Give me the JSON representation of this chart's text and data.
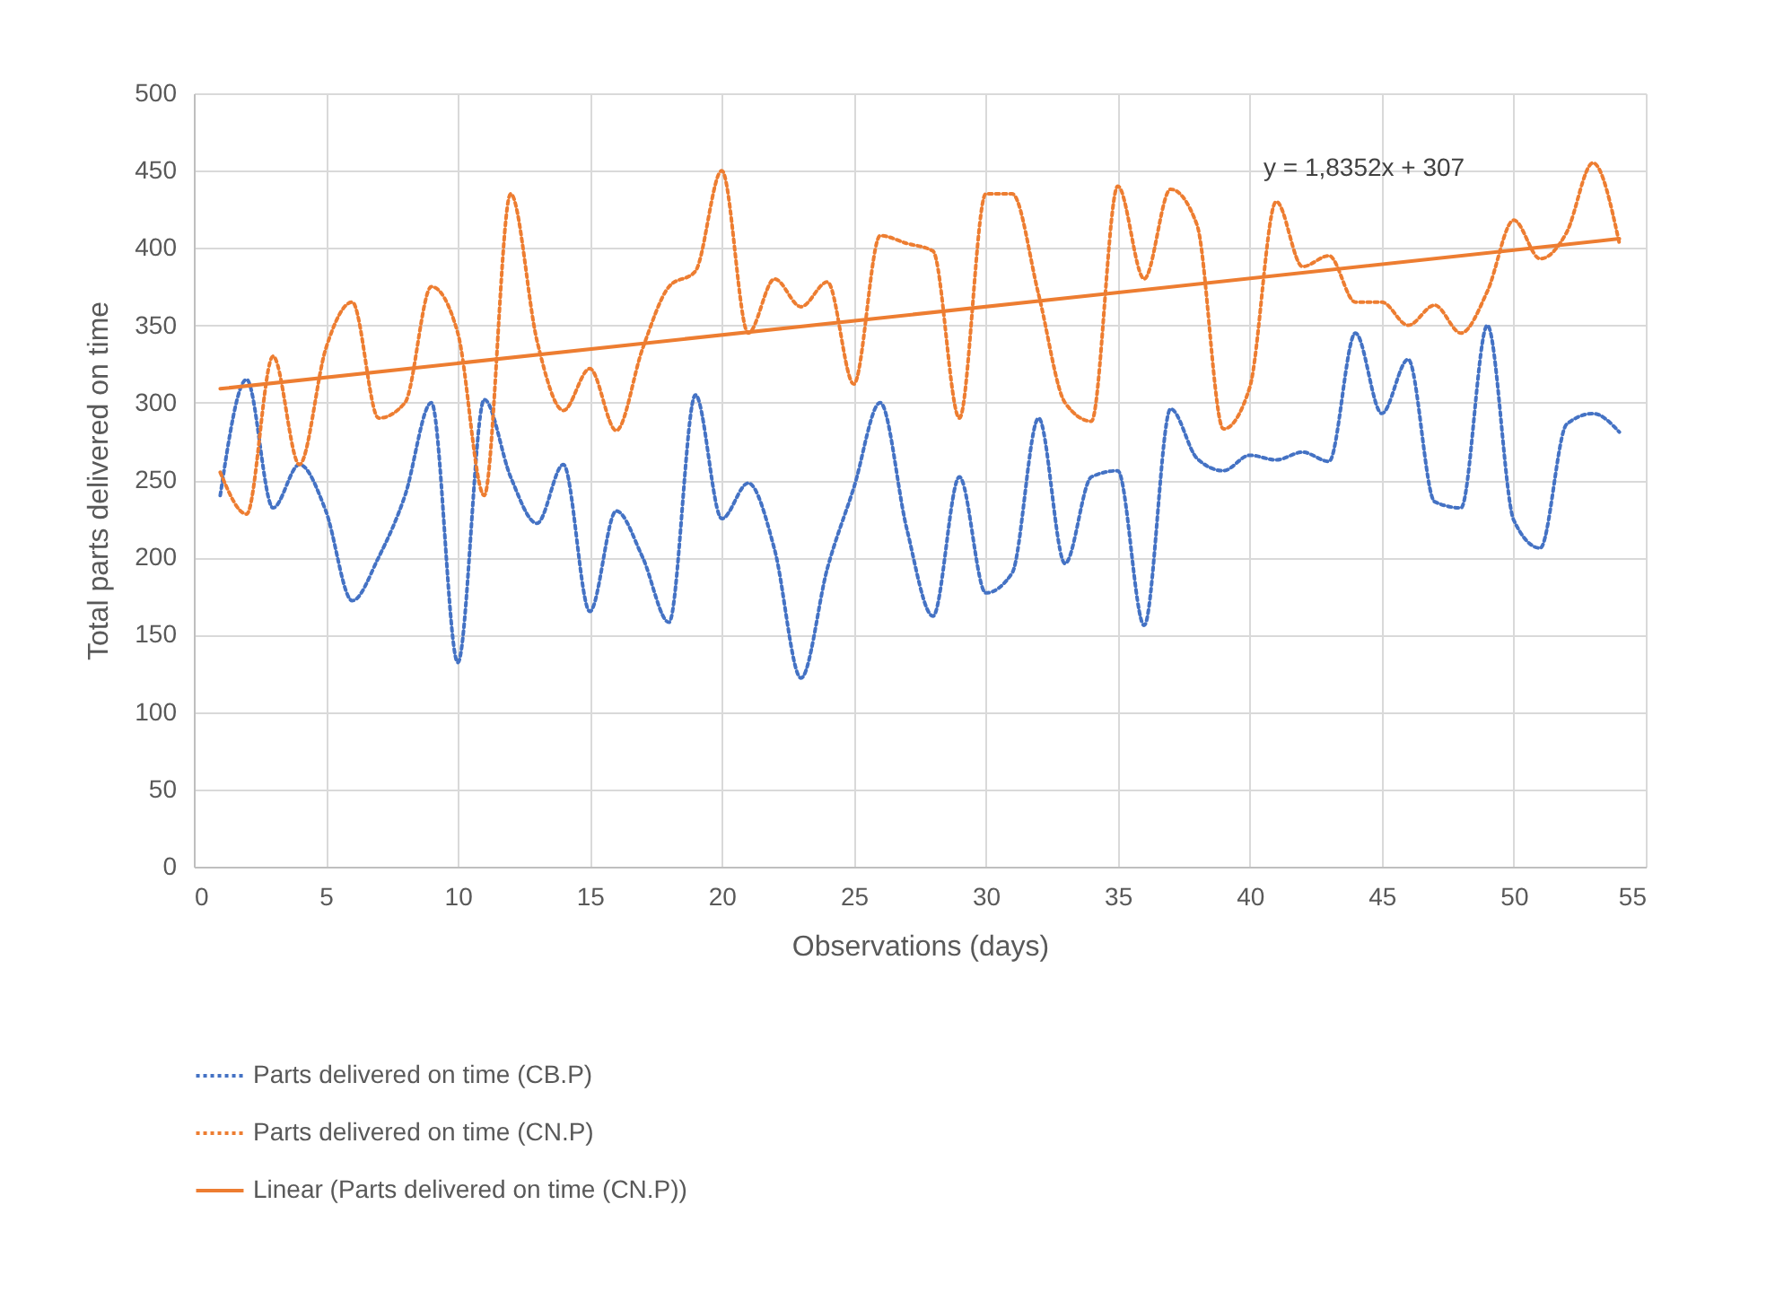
{
  "chart_data": {
    "type": "line",
    "xlabel": "Observations (days)",
    "ylabel": "Total parts delivered on time",
    "x": [
      1,
      2,
      3,
      4,
      5,
      6,
      7,
      8,
      9,
      10,
      11,
      12,
      13,
      14,
      15,
      16,
      17,
      18,
      19,
      20,
      21,
      22,
      23,
      24,
      25,
      26,
      27,
      28,
      29,
      30,
      31,
      32,
      33,
      34,
      35,
      36,
      37,
      38,
      39,
      40,
      41,
      42,
      43,
      44,
      45,
      46,
      47,
      48,
      49,
      50,
      51,
      52,
      53,
      54
    ],
    "series": [
      {
        "name": "Parts delivered on time (CB.P)",
        "color": "#4472c4",
        "line_style": "dotted",
        "values": [
          240,
          315,
          232,
          260,
          230,
          172,
          200,
          240,
          300,
          132,
          302,
          252,
          222,
          260,
          165,
          230,
          200,
          158,
          305,
          225,
          248,
          205,
          122,
          193,
          245,
          300,
          219,
          162,
          252,
          177,
          190,
          290,
          196,
          252,
          256,
          156,
          296,
          264,
          256,
          266,
          263,
          268,
          262,
          345,
          293,
          328,
          236,
          232,
          350,
          224,
          206,
          286,
          293,
          281
        ]
      },
      {
        "name": "Parts delivered on time (CN.P)",
        "color": "#ed7d31",
        "line_style": "dotted",
        "values": [
          255,
          228,
          330,
          260,
          335,
          365,
          290,
          300,
          375,
          345,
          240,
          435,
          340,
          295,
          322,
          282,
          335,
          375,
          385,
          450,
          345,
          380,
          362,
          378,
          312,
          408,
          403,
          398,
          290,
          435,
          435,
          370,
          300,
          288,
          440,
          380,
          438,
          415,
          283,
          310,
          430,
          388,
          395,
          365,
          365,
          350,
          363,
          345,
          372,
          418,
          393,
          410,
          455,
          403
        ]
      },
      {
        "name": "Linear (Parts delivered on time (CN.P))",
        "color": "#ed7d31",
        "line_style": "solid",
        "x": [
          1,
          54
        ],
        "values": [
          309,
          406
        ]
      }
    ],
    "annotations": [
      "y = 1,8352x + 307"
    ],
    "xlim": [
      0,
      55
    ],
    "xticks": [
      0,
      5,
      10,
      15,
      20,
      25,
      30,
      35,
      40,
      45,
      50,
      55
    ],
    "ylim": [
      0,
      500
    ],
    "yticks": [
      0,
      50,
      100,
      150,
      200,
      250,
      300,
      350,
      400,
      450,
      500
    ],
    "grid": true,
    "legend": "bottom"
  }
}
